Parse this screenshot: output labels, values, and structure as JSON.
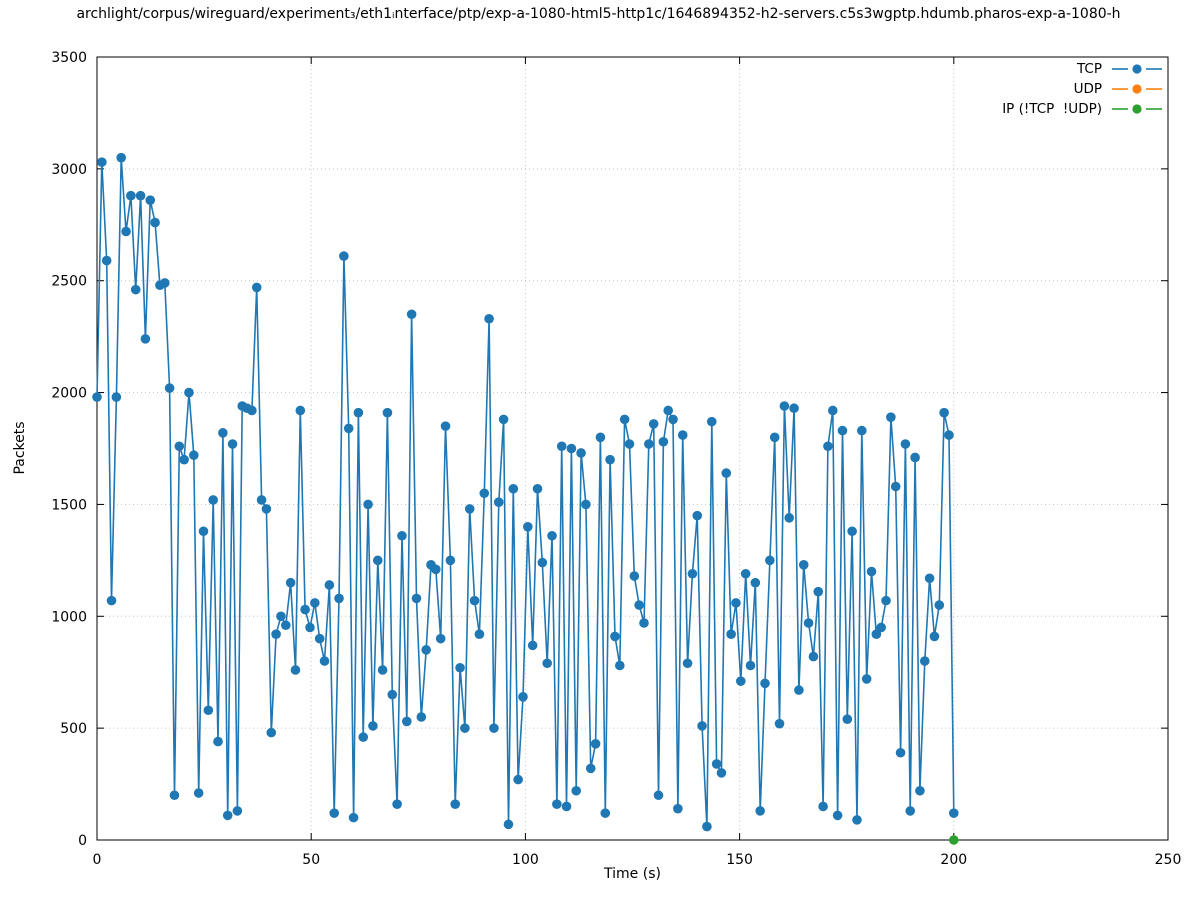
{
  "title": "archlight/corpus/wireguard/experiment₃/eth1ᵢnterface/ptp/exp-a-1080-html5-http1c/1646894352-h2-servers.c5s3wgptp.hdumb.pharos-exp-a-1080-h",
  "axes": {
    "x_label": "Time (s)",
    "y_label": "Packets"
  },
  "chart_data": {
    "type": "line",
    "title": "archlight/corpus/wireguard/experiment_3/eth1_interface/ptp/exp-a-1080-html5-http1c/1646894352-h2-servers.c5s3wgptp.hdumb.pharos-exp-a-1080-h",
    "xlabel": "Time (s)",
    "ylabel": "Packets",
    "xlim": [
      0,
      250
    ],
    "ylim": [
      0,
      3500
    ],
    "xtick_step": 50,
    "ytick_step": 500,
    "grid": true,
    "legend_position": "top-right",
    "series": [
      {
        "name": "TCP",
        "color": "#1f77b4",
        "marker": "circle",
        "x_start": 0,
        "x_end": 200,
        "y_values": [
          1980,
          3030,
          2590,
          1070,
          1980,
          3050,
          2720,
          2880,
          2460,
          2880,
          2240,
          2860,
          2760,
          2480,
          2490,
          2020,
          200,
          1760,
          1700,
          2000,
          1720,
          210,
          1380,
          580,
          1520,
          440,
          1820,
          110,
          1770,
          130,
          1940,
          1930,
          1920,
          2470,
          1520,
          1480,
          480,
          920,
          1000,
          960,
          1150,
          760,
          1920,
          1030,
          950,
          1060,
          900,
          800,
          1140,
          120,
          1080,
          2610,
          1840,
          100,
          1910,
          460,
          1500,
          510,
          1250,
          760,
          1910,
          650,
          160,
          1360,
          530,
          2350,
          1080,
          550,
          850,
          1230,
          1210,
          900,
          1850,
          1250,
          160,
          770,
          500,
          1480,
          1070,
          920,
          1550,
          2330,
          500,
          1510,
          1880,
          70,
          1570,
          270,
          640,
          1400,
          870,
          1570,
          1240,
          790,
          1360,
          160,
          1760,
          150,
          1750,
          220,
          1730,
          1500,
          320,
          430,
          1800,
          120,
          1700,
          910,
          780,
          1880,
          1770,
          1180,
          1050,
          970,
          1770,
          1860,
          200,
          1780,
          1920,
          1880,
          140,
          1810,
          790,
          1190,
          1450,
          510,
          60,
          1870,
          340,
          300,
          1640,
          920,
          1060,
          710,
          1190,
          780,
          1150,
          130,
          700,
          1250,
          1800,
          520,
          1940,
          1440,
          1930,
          670,
          1230,
          970,
          820,
          1110,
          150,
          1760,
          1920,
          110,
          1830,
          540,
          1380,
          90,
          1830,
          720,
          1200,
          920,
          950,
          1070,
          1890,
          1580,
          390,
          1770,
          130,
          1710,
          220,
          800,
          1170,
          910,
          1050,
          1910,
          1810,
          120
        ]
      },
      {
        "name": "UDP",
        "color": "#ff7f0e",
        "marker": "circle",
        "points": []
      },
      {
        "name": "IP (!TCP  !UDP)",
        "color": "#2ca02c",
        "marker": "circle",
        "points": [
          [
            200,
            0
          ]
        ]
      }
    ]
  }
}
